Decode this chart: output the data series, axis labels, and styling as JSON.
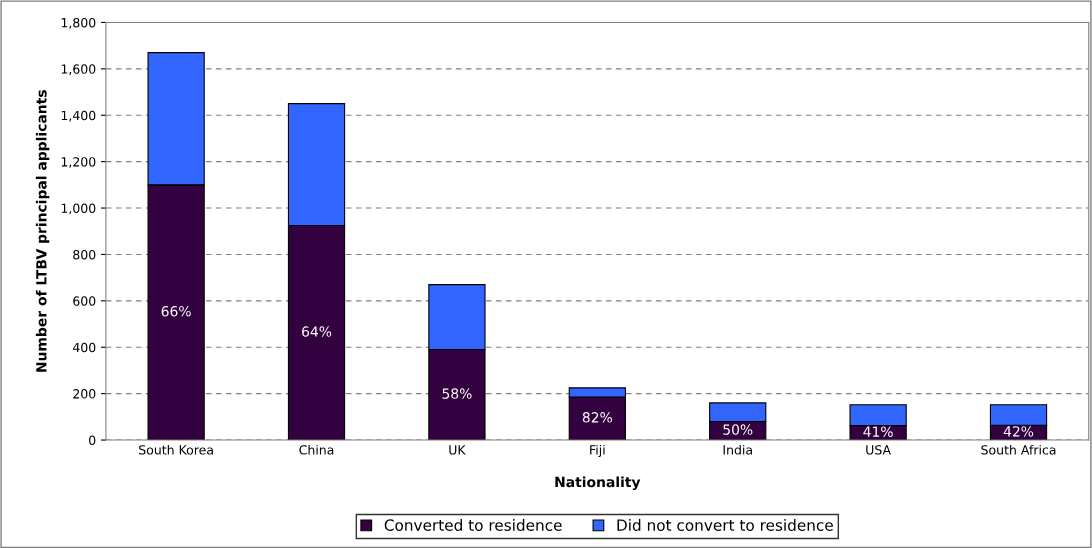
{
  "chart_data": {
    "type": "bar",
    "stacked": true,
    "xlabel": "Nationality",
    "ylabel": "Number of LTBV principal applicants",
    "categories": [
      "South Korea",
      "China",
      "UK",
      "Fiji",
      "India",
      "USA",
      "South Africa"
    ],
    "series": [
      {
        "name": "Converted to residence",
        "color": "#330040",
        "values": [
          1100,
          925,
          390,
          185,
          80,
          62,
          64
        ]
      },
      {
        "name": "Did not convert to residence",
        "color": "#3366ff",
        "values": [
          570,
          525,
          280,
          40,
          80,
          90,
          88
        ]
      }
    ],
    "ylim": [
      0,
      1800
    ],
    "yticks": [
      {
        "value": 0,
        "label": "0"
      },
      {
        "value": 200,
        "label": "200"
      },
      {
        "value": 400,
        "label": "400"
      },
      {
        "value": 600,
        "label": "600"
      },
      {
        "value": 800,
        "label": "800"
      },
      {
        "value": 1000,
        "label": "1,000"
      },
      {
        "value": 1200,
        "label": "1,200"
      },
      {
        "value": 1400,
        "label": "1,400"
      },
      {
        "value": 1600,
        "label": "1,600"
      },
      {
        "value": 1800,
        "label": "1,800"
      }
    ],
    "annotations": [
      "66%",
      "64%",
      "58%",
      "82%",
      "50%",
      "41%",
      "42%"
    ],
    "grid": "y",
    "legend": "bottom"
  }
}
